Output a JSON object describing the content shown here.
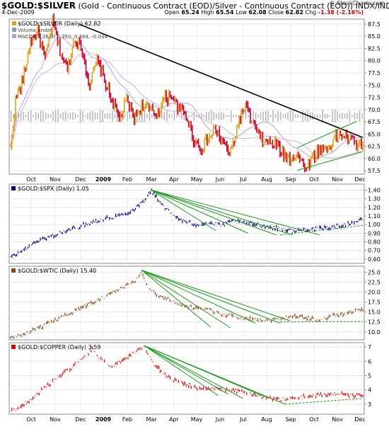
{
  "header": {
    "title_symbol": "$GOLD:$SILVER",
    "title_desc": "(Gold - Continuous Contract (EOD)/Silver - Continuous Contract (EOD))",
    "exchange": "INDX/INDX",
    "date": "4-Dec-2009",
    "ohlc": {
      "open_label": "Open",
      "open": "65.24",
      "high_label": "High",
      "high": "65.54",
      "low_label": "Low",
      "low": "62.08",
      "close_label": "Close",
      "close": "62.82",
      "chg_label": "Chg",
      "chg": "-1.38 (-2.16%)"
    },
    "watermark": "© StockCharts.com"
  },
  "colors": {
    "gold_silver_up": "#d9a520",
    "gold_silver_down": "#cc0033",
    "spx": "#000080",
    "wtic": "#8b4513",
    "copper": "#e00000",
    "trend": "#1a9a1a",
    "ma": "#c0a0d8",
    "volume": "#b0b0b0"
  },
  "chart_data": [
    {
      "type": "bar",
      "name": "$GOLD:$SILVER (Daily) 62.82",
      "legend": [
        "$GOLD:$SILVER (Daily) 62.82",
        "Volume undef",
        "MACD(12,26,9) 0.350, 0.384, -0.034"
      ],
      "x_labels": [
        "Oct",
        "Nov",
        "Dec",
        "2009",
        "Feb",
        "Mar",
        "Apr",
        "May",
        "Jun",
        "Jul",
        "Aug",
        "Sep",
        "Oct",
        "Nov",
        "Dec"
      ],
      "y_ticks": [
        57.5,
        60.0,
        62.5,
        65.0,
        67.5,
        70.0,
        72.5,
        75.0,
        77.5,
        80.0,
        82.5,
        85.0,
        87.5
      ],
      "ylim": [
        56.8,
        88.5
      ],
      "anchors": [
        [
          0,
          62
        ],
        [
          4,
          72
        ],
        [
          10,
          76
        ],
        [
          16,
          84
        ],
        [
          22,
          86
        ],
        [
          28,
          80
        ],
        [
          34,
          88
        ],
        [
          40,
          82
        ],
        [
          46,
          78
        ],
        [
          52,
          85
        ],
        [
          58,
          82
        ],
        [
          64,
          75
        ],
        [
          70,
          80
        ],
        [
          76,
          76
        ],
        [
          82,
          72
        ],
        [
          88,
          68
        ],
        [
          94,
          72
        ],
        [
          100,
          68
        ],
        [
          106,
          71
        ],
        [
          112,
          70
        ],
        [
          118,
          69
        ],
        [
          124,
          72
        ],
        [
          130,
          73
        ],
        [
          136,
          70
        ],
        [
          142,
          69
        ],
        [
          148,
          64
        ],
        [
          154,
          62
        ],
        [
          160,
          64
        ],
        [
          166,
          66
        ],
        [
          172,
          63
        ],
        [
          178,
          61
        ],
        [
          184,
          67
        ],
        [
          190,
          71
        ],
        [
          196,
          67
        ],
        [
          202,
          64
        ],
        [
          208,
          63
        ],
        [
          214,
          63
        ],
        [
          220,
          61
        ],
        [
          226,
          60
        ],
        [
          232,
          61
        ],
        [
          238,
          58
        ],
        [
          244,
          60
        ],
        [
          250,
          62
        ],
        [
          256,
          62
        ],
        [
          262,
          64
        ],
        [
          268,
          65
        ],
        [
          274,
          64
        ],
        [
          280,
          63
        ],
        [
          285,
          62.8
        ]
      ],
      "series": [
        {
          "name": "$GOLD:$SILVER",
          "values": []
        }
      ],
      "trendlines": [
        [
          [
            56,
            87.4
          ],
          [
            285,
            64.3
          ]
        ],
        [
          [
            232,
            62.2
          ],
          [
            280,
            67.6
          ]
        ],
        [
          [
            232,
            57.6
          ],
          [
            285,
            61.4
          ]
        ]
      ]
    },
    {
      "type": "line",
      "name": "$GOLD:$SPX (Daily) 1.05",
      "x_labels": [
        "Oct",
        "Nov",
        "Dec",
        "2009",
        "Feb",
        "Mar",
        "Apr",
        "May",
        "Jun",
        "Jul",
        "Aug",
        "Sep",
        "Oct",
        "Nov",
        "Dec"
      ],
      "y_ticks": [
        0.6,
        0.7,
        0.8,
        0.9,
        1.0,
        1.1,
        1.2,
        1.3,
        1.4
      ],
      "ylim": [
        0.55,
        1.47
      ],
      "anchors": [
        [
          0,
          0.62
        ],
        [
          8,
          0.68
        ],
        [
          20,
          0.8
        ],
        [
          32,
          0.86
        ],
        [
          44,
          0.92
        ],
        [
          56,
          0.98
        ],
        [
          68,
          1.04
        ],
        [
          80,
          1.08
        ],
        [
          92,
          1.12
        ],
        [
          100,
          1.18
        ],
        [
          108,
          1.28
        ],
        [
          114,
          1.39
        ],
        [
          120,
          1.28
        ],
        [
          130,
          1.12
        ],
        [
          140,
          1.04
        ],
        [
          150,
          1.0
        ],
        [
          160,
          1.02
        ],
        [
          170,
          0.99
        ],
        [
          180,
          1.04
        ],
        [
          190,
          1.02
        ],
        [
          200,
          1.0
        ],
        [
          210,
          0.97
        ],
        [
          220,
          0.95
        ],
        [
          230,
          0.92
        ],
        [
          240,
          0.95
        ],
        [
          250,
          0.95
        ],
        [
          260,
          0.97
        ],
        [
          270,
          1.0
        ],
        [
          280,
          1.04
        ],
        [
          285,
          1.05
        ]
      ],
      "series": [
        {
          "name": "$GOLD:$SPX",
          "values": []
        }
      ],
      "trendlines": [
        [
          [
            114,
            1.4
          ],
          [
            166,
            0.93
          ]
        ],
        [
          [
            114,
            1.4
          ],
          [
            192,
            0.9
          ]
        ],
        [
          [
            114,
            1.4
          ],
          [
            215,
            0.88
          ]
        ],
        [
          [
            114,
            1.4
          ],
          [
            228,
            0.88
          ]
        ],
        [
          [
            114,
            1.4
          ],
          [
            250,
            0.88
          ]
        ]
      ],
      "dashed": [
        [
          [
            218,
            0.88
          ],
          [
            285,
            0.99
          ]
        ]
      ]
    },
    {
      "type": "line",
      "name": "$GOLD:$WTIC (Daily) 15.40",
      "x_labels": [
        "Oct",
        "Nov",
        "Dec",
        "2009",
        "Feb",
        "Mar",
        "Apr",
        "May",
        "Jun",
        "Jul",
        "Aug",
        "Sep",
        "Oct",
        "Nov",
        "Dec"
      ],
      "y_ticks": [
        10.0,
        12.5,
        15.0,
        17.5,
        20.0,
        22.5,
        25.0
      ],
      "ylim": [
        8.0,
        26.5
      ],
      "anchors": [
        [
          0,
          8.5
        ],
        [
          10,
          9.3
        ],
        [
          20,
          10.5
        ],
        [
          30,
          12.0
        ],
        [
          40,
          13.5
        ],
        [
          50,
          15.0
        ],
        [
          60,
          16.5
        ],
        [
          70,
          18.0
        ],
        [
          80,
          19.5
        ],
        [
          90,
          21.0
        ],
        [
          100,
          22.5
        ],
        [
          106,
          25.0
        ],
        [
          112,
          21.0
        ],
        [
          120,
          19.0
        ],
        [
          130,
          18.0
        ],
        [
          140,
          16.5
        ],
        [
          150,
          16.0
        ],
        [
          160,
          15.5
        ],
        [
          170,
          14.5
        ],
        [
          180,
          14.0
        ],
        [
          190,
          13.5
        ],
        [
          200,
          13.0
        ],
        [
          210,
          13.0
        ],
        [
          220,
          13.5
        ],
        [
          230,
          14.0
        ],
        [
          240,
          13.5
        ],
        [
          250,
          13.0
        ],
        [
          260,
          14.0
        ],
        [
          270,
          14.5
        ],
        [
          280,
          15.5
        ],
        [
          285,
          15.4
        ]
      ],
      "series": [
        {
          "name": "$GOLD:$WTIC",
          "values": []
        }
      ],
      "trendlines": [
        [
          [
            106,
            25.5
          ],
          [
            162,
            11.2
          ]
        ],
        [
          [
            106,
            25.5
          ],
          [
            178,
            11.0
          ]
        ],
        [
          [
            106,
            25.5
          ],
          [
            198,
            12.2
          ]
        ],
        [
          [
            106,
            25.5
          ],
          [
            218,
            12.2
          ]
        ],
        [
          [
            106,
            25.5
          ],
          [
            226,
            12.8
          ]
        ]
      ],
      "dashed": [
        [
          [
            218,
            12.5
          ],
          [
            285,
            12.6
          ]
        ]
      ]
    },
    {
      "type": "line",
      "name": "$GOLD:$COPPER (Daily) 3.59",
      "x_labels": [
        "Oct",
        "Nov",
        "Dec",
        "2009",
        "Feb",
        "Mar",
        "Apr",
        "May",
        "Jun",
        "Jul",
        "Aug",
        "Sep",
        "Oct",
        "Nov",
        "Dec"
      ],
      "y_ticks": [
        3,
        4,
        5,
        6,
        7
      ],
      "ylim": [
        2.3,
        7.3
      ],
      "anchors": [
        [
          0,
          2.5
        ],
        [
          10,
          2.9
        ],
        [
          20,
          3.6
        ],
        [
          30,
          4.3
        ],
        [
          40,
          5.0
        ],
        [
          50,
          5.6
        ],
        [
          60,
          6.3
        ],
        [
          66,
          6.9
        ],
        [
          72,
          6.2
        ],
        [
          80,
          5.6
        ],
        [
          88,
          5.9
        ],
        [
          96,
          6.3
        ],
        [
          102,
          6.7
        ],
        [
          108,
          6.9
        ],
        [
          116,
          5.8
        ],
        [
          126,
          5.0
        ],
        [
          136,
          4.5
        ],
        [
          146,
          4.3
        ],
        [
          156,
          4.0
        ],
        [
          166,
          4.1
        ],
        [
          176,
          4.0
        ],
        [
          186,
          3.9
        ],
        [
          196,
          3.7
        ],
        [
          206,
          3.5
        ],
        [
          216,
          3.3
        ],
        [
          226,
          3.4
        ],
        [
          236,
          3.5
        ],
        [
          246,
          3.6
        ],
        [
          256,
          3.7
        ],
        [
          266,
          3.7
        ],
        [
          276,
          3.6
        ],
        [
          285,
          3.59
        ]
      ],
      "series": [
        {
          "name": "$GOLD:$COPPER",
          "values": []
        }
      ],
      "trendlines": [
        [
          [
            108,
            7.1
          ],
          [
            168,
            3.6
          ]
        ],
        [
          [
            108,
            7.1
          ],
          [
            176,
            3.7
          ]
        ],
        [
          [
            108,
            7.1
          ],
          [
            188,
            3.4
          ]
        ],
        [
          [
            108,
            7.1
          ],
          [
            206,
            3.5
          ]
        ],
        [
          [
            108,
            7.1
          ],
          [
            222,
            3.0
          ]
        ]
      ],
      "dashed": [
        [
          [
            222,
            3.0
          ],
          [
            285,
            3.4
          ]
        ]
      ]
    }
  ]
}
